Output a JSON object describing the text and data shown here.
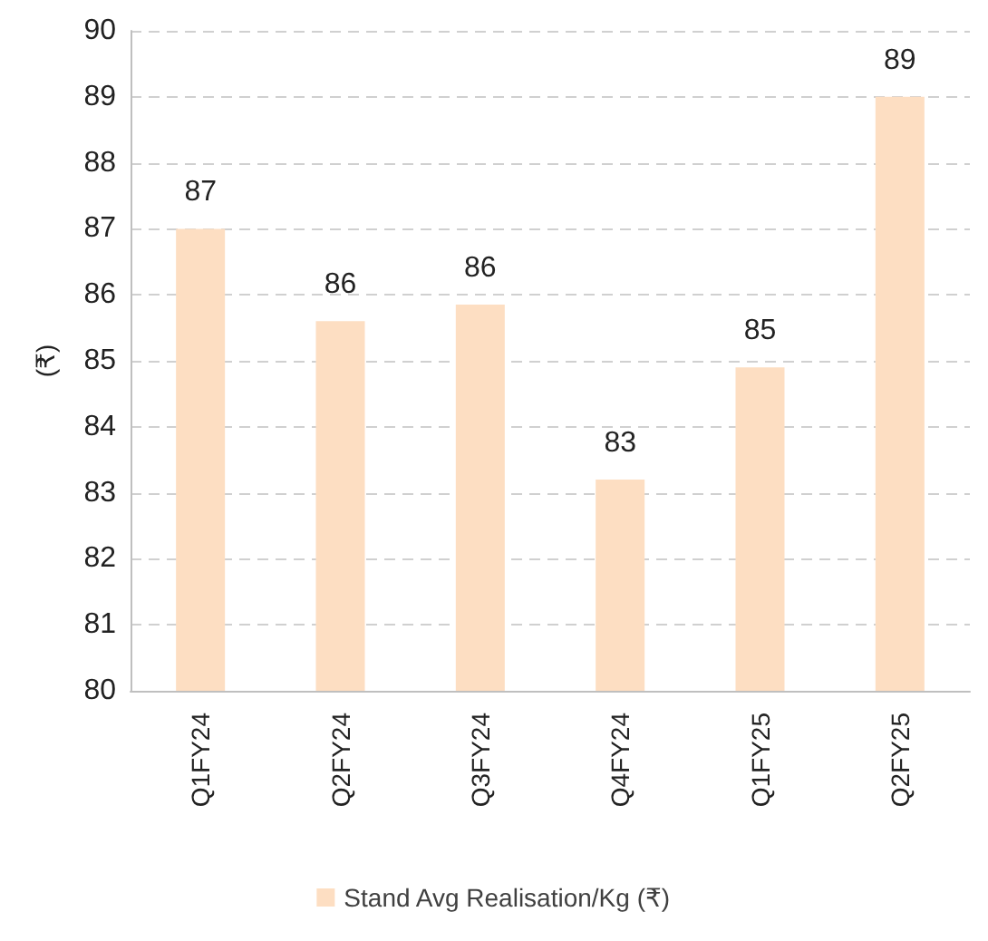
{
  "chart_data": {
    "type": "bar",
    "ylabel": "(₹)",
    "categories": [
      "Q1FY24",
      "Q2FY24",
      "Q3FY24",
      "Q4FY24",
      "Q1FY25",
      "Q2FY25"
    ],
    "series": [
      {
        "name": "Stand Avg Realisation/Kg (₹)",
        "color": "#fddec2",
        "values": [
          87.0,
          85.6,
          85.85,
          83.2,
          84.9,
          89.0
        ],
        "value_labels": [
          "87",
          "86",
          "86",
          "83",
          "85",
          "89"
        ]
      }
    ],
    "ylim": [
      80,
      90
    ],
    "yticks": [
      80,
      81,
      82,
      83,
      84,
      85,
      86,
      87,
      88,
      89,
      90
    ],
    "grid": "y",
    "legend": "bottom"
  }
}
